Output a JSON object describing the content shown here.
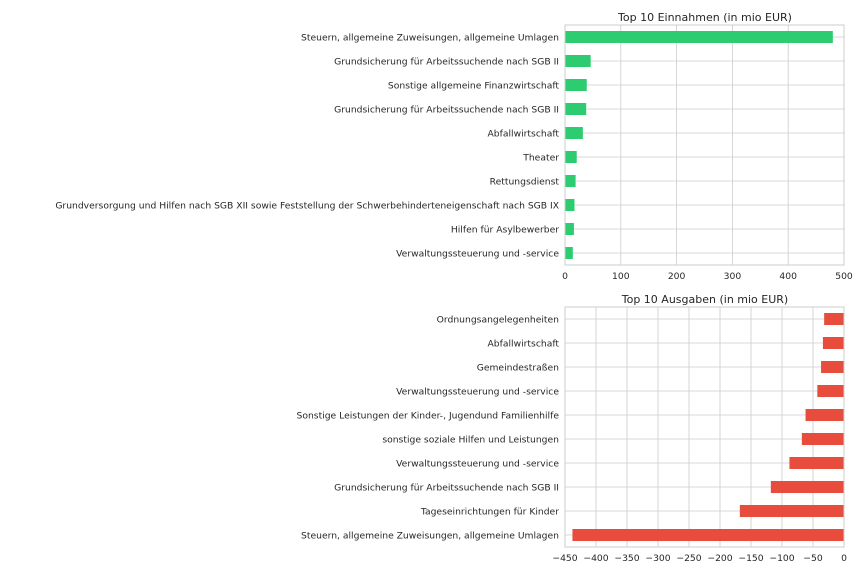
{
  "chart_data": [
    {
      "type": "bar",
      "orientation": "horizontal",
      "title": "Top 10 Einnahmen (in mio EUR)",
      "xlabel": "",
      "ylabel": "",
      "categories": [
        "Steuern, allgemeine Zuweisungen, allgemeine Umlagen",
        "Grundsicherung für Arbeitssuchende nach SGB II",
        "Sonstige allgemeine Finanzwirtschaft",
        "Grundsicherung für Arbeitssuchende nach SGB II",
        "Abfallwirtschaft",
        "Theater",
        "Rettungsdienst",
        "Grundversorgung und Hilfen nach SGB XII sowie Feststellung der Schwerbehinderteneigenschaft nach SGB IX",
        "Hilfen für Asylbewerber",
        "Verwaltungssteuerung und -service"
      ],
      "values": [
        480,
        46,
        39,
        38,
        32,
        21,
        19,
        17,
        16,
        14
      ],
      "xlim": [
        0,
        500
      ],
      "xticks": [
        0,
        100,
        200,
        300,
        400,
        500
      ],
      "grid": true,
      "color": "#2ecc71"
    },
    {
      "type": "bar",
      "orientation": "horizontal",
      "title": "Top 10 Ausgaben (in mio EUR)",
      "xlabel": "",
      "ylabel": "",
      "categories": [
        "Ordnungsangelegenheiten",
        "Abfallwirtschaft",
        "Gemeindestraßen",
        "Verwaltungssteuerung und -service",
        "Sonstige Leistungen der Kinder-, Jugendund Familienhilfe",
        "sonstige soziale Hilfen und Leistungen",
        "Verwaltungssteuerung und -service",
        "Grundsicherung für Arbeitssuchende nach SGB II",
        "Tageseinrichtungen für Kinder",
        "Steuern, allgemeine Zuweisungen, allgemeine Umlagen"
      ],
      "values": [
        -32,
        -34,
        -37,
        -43,
        -62,
        -68,
        -88,
        -118,
        -168,
        -438
      ],
      "xlim": [
        -450,
        0
      ],
      "xticks": [
        -450,
        -400,
        -350,
        -300,
        -250,
        -200,
        -150,
        -100,
        -50,
        0
      ],
      "xtick_labels": [
        "−450",
        "−400",
        "−350",
        "−300",
        "−250",
        "−200",
        "−150",
        "−100",
        "−50",
        "0"
      ],
      "grid": true,
      "zero_line": "dashed",
      "color": "#e74c3c"
    }
  ]
}
